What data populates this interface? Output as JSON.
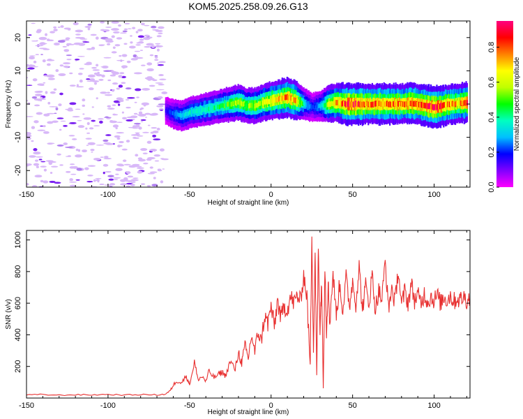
{
  "title": "KOM5.2025.258.09.26.G13",
  "chart_data": [
    {
      "type": "heatmap",
      "xlabel": "Height of straight line (km)",
      "ylabel": "Frequency (Hz)",
      "xlim": [
        -150,
        122
      ],
      "ylim": [
        -25,
        25
      ],
      "x_ticks": [
        -150,
        -100,
        -50,
        0,
        50,
        100
      ],
      "y_ticks": [
        -20,
        -10,
        0,
        10,
        20
      ],
      "colorbar": {
        "label": "Normalized spectral amplitude",
        "range": [
          0,
          0.95
        ],
        "ticks": [
          0.0,
          0.2,
          0.4,
          0.6,
          0.8
        ],
        "colors": [
          "#ff00ff",
          "#8000ff",
          "#0000ff",
          "#00c0ff",
          "#00ffc0",
          "#00ff00",
          "#c0ff00",
          "#ffff00",
          "#ff8000",
          "#ff0000",
          "#ff0080"
        ]
      },
      "noise_region_x": [
        -150,
        -65
      ],
      "ridge": {
        "x": [
          -65,
          -60,
          -55,
          -50,
          -45,
          -40,
          -35,
          -30,
          -25,
          -20,
          -15,
          -10,
          -5,
          0,
          5,
          10,
          15,
          20,
          25,
          30,
          35,
          40,
          45,
          50,
          55,
          60,
          65,
          70,
          75,
          80,
          85,
          90,
          95,
          100,
          105,
          110,
          115,
          120
        ],
        "y": [
          -2,
          -3,
          -3.5,
          -2.5,
          -2,
          -1.5,
          -1,
          -0.5,
          0,
          0.5,
          -0.5,
          -0.5,
          0.5,
          1,
          1.5,
          2,
          1,
          0,
          -1,
          -0.5,
          0,
          0.5,
          0,
          0,
          0,
          0,
          0,
          0,
          0,
          0,
          0.3,
          0,
          -0.5,
          -1,
          -0.5,
          0,
          0.2,
          0.5
        ],
        "amplitude": [
          0.15,
          0.25,
          0.3,
          0.35,
          0.35,
          0.4,
          0.4,
          0.45,
          0.5,
          0.55,
          0.5,
          0.55,
          0.6,
          0.65,
          0.7,
          0.75,
          0.7,
          0.35,
          0.2,
          0.3,
          0.6,
          0.7,
          0.8,
          0.85,
          0.8,
          0.75,
          0.8,
          0.75,
          0.8,
          0.75,
          0.8,
          0.75,
          0.8,
          0.85,
          0.8,
          0.75,
          0.7,
          0.8
        ]
      }
    },
    {
      "type": "line",
      "xlabel": "Height of straight line (km)",
      "ylabel": "SNR (v/v)",
      "xlim": [
        -150,
        122
      ],
      "ylim": [
        0,
        1060
      ],
      "x_ticks": [
        -150,
        -100,
        -50,
        0,
        50,
        100
      ],
      "y_ticks": [
        200,
        400,
        600,
        800,
        1000
      ],
      "series": [
        {
          "color": "#e83030",
          "x": [
            -150,
            -140,
            -130,
            -120,
            -110,
            -100,
            -90,
            -80,
            -70,
            -65,
            -62,
            -60,
            -58,
            -55,
            -52,
            -50,
            -47,
            -45,
            -42,
            -40,
            -38,
            -35,
            -32,
            -30,
            -28,
            -25,
            -22,
            -20,
            -18,
            -16,
            -14,
            -12,
            -10,
            -8,
            -6,
            -4,
            -2,
            0,
            2,
            4,
            6,
            8,
            10,
            12,
            14,
            16,
            18,
            20,
            22,
            24,
            25,
            26,
            27,
            28,
            29,
            30,
            31,
            32,
            33,
            34,
            35,
            36,
            38,
            40,
            42,
            44,
            46,
            48,
            50,
            52,
            54,
            56,
            58,
            60,
            62,
            64,
            66,
            68,
            70,
            72,
            74,
            76,
            78,
            80,
            82,
            84,
            86,
            88,
            90,
            92,
            94,
            96,
            98,
            100,
            102,
            104,
            106,
            108,
            110,
            112,
            114,
            116,
            118,
            120,
            122
          ],
          "y": [
            20,
            22,
            18,
            21,
            20,
            23,
            19,
            22,
            20,
            24,
            45,
            80,
            110,
            95,
            140,
            85,
            230,
            120,
            135,
            105,
            170,
            130,
            150,
            165,
            140,
            230,
            180,
            290,
            220,
            330,
            250,
            400,
            290,
            420,
            360,
            520,
            470,
            580,
            450,
            620,
            500,
            580,
            560,
            640,
            600,
            650,
            610,
            780,
            640,
            200,
            1050,
            300,
            900,
            150,
            980,
            420,
            750,
            60,
            850,
            420,
            730,
            480,
            790,
            520,
            720,
            560,
            760,
            580,
            740,
            600,
            830,
            560,
            710,
            600,
            780,
            560,
            680,
            620,
            870,
            560,
            700,
            600,
            820,
            580,
            680,
            600,
            720,
            620,
            650,
            600,
            660,
            610,
            640,
            620,
            650,
            600,
            640,
            620,
            650,
            610,
            630,
            620,
            640,
            620,
            630
          ]
        }
      ]
    }
  ]
}
